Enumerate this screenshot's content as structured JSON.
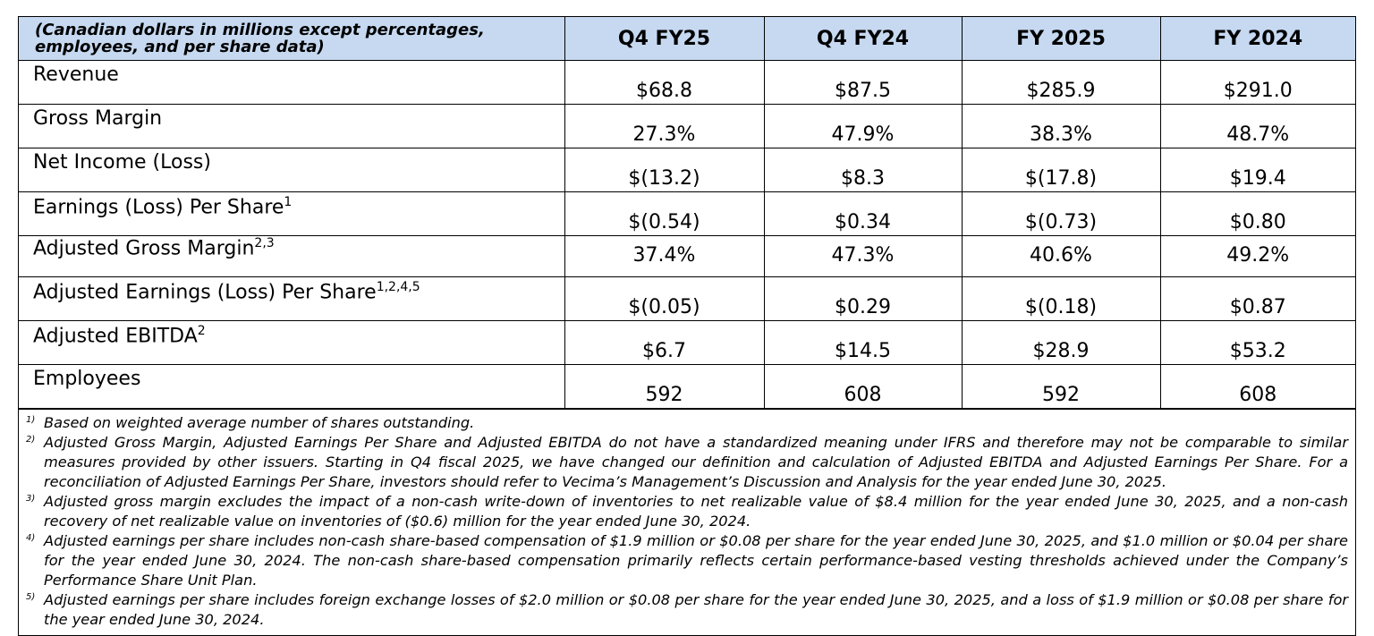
{
  "table": {
    "header": [
      "(Canadian dollars in millions except percentages, employees, and per share data)",
      "Q4 FY25",
      "Q4 FY24",
      "FY 2025",
      "FY 2024"
    ],
    "rows": [
      {
        "label": "Revenue",
        "values": [
          "$68.8",
          "$87.5",
          "$285.9",
          "$291.0"
        ]
      },
      {
        "label": "Gross Margin",
        "values": [
          "27.3%",
          "47.9%",
          "38.3%",
          "48.7%"
        ]
      },
      {
        "label": "Net Income (Loss)",
        "values": [
          "$(13.2)",
          "$8.3",
          "$(17.8)",
          "$19.4"
        ]
      },
      {
        "label": "Earnings (Loss) Per Share",
        "note": "1",
        "values": [
          "$(0.54)",
          "$0.34",
          "$(0.73)",
          "$0.80"
        ]
      },
      {
        "label": "Adjusted Gross Margin",
        "note": "2,3",
        "values": [
          "37.4%",
          "47.3%",
          "40.6%",
          "49.2%"
        ]
      },
      {
        "label": "Adjusted Earnings (Loss) Per Share",
        "note": "1,2,4,5",
        "values": [
          "$(0.05)",
          "$0.29",
          "$(0.18)",
          "$0.87"
        ]
      },
      {
        "label": "Adjusted EBITDA",
        "note": "2",
        "values": [
          "$6.7",
          "$14.5",
          "$28.9",
          "$53.2"
        ]
      },
      {
        "label": "Employees",
        "values": [
          "592",
          "608",
          "592",
          "608"
        ]
      }
    ]
  },
  "footnotes": [
    {
      "marker": "1)",
      "text": "Based on weighted average number of shares outstanding."
    },
    {
      "marker": "2)",
      "text": "Adjusted Gross Margin, Adjusted Earnings Per Share and Adjusted EBITDA do not have a standardized meaning under IFRS and therefore may not be comparable to similar measures provided by other issuers. Starting in Q4 fiscal 2025, we have changed our definition and calculation of Adjusted EBITDA and Adjusted Earnings Per Share. For a reconciliation of Adjusted Earnings Per Share, investors should refer to Vecima’s Management’s Discussion and Analysis for the year ended June 30, 2025."
    },
    {
      "marker": "3)",
      "text": "Adjusted gross margin excludes the impact of a non-cash write-down of inventories to net realizable value of $8.4 million for the year ended June 30, 2025, and a non-cash recovery of net realizable value on inventories of ($0.6) million for the year ended June 30, 2024."
    },
    {
      "marker": "4)",
      "text": "Adjusted earnings per share includes non-cash share-based compensation of $1.9 million or $0.08 per share for the year ended June 30, 2025, and $1.0 million or $0.04 per share for the year ended June 30, 2024. The non-cash share-based compensation primarily reflects certain performance-based vesting thresholds achieved under the Company’s Performance Share Unit Plan."
    },
    {
      "marker": "5)",
      "text": "Adjusted earnings per share includes foreign exchange losses of $2.0 million or $0.08 per share for the year ended June 30, 2025, and a loss of $1.9 million or $0.08 per share for the year ended June 30, 2024."
    }
  ]
}
